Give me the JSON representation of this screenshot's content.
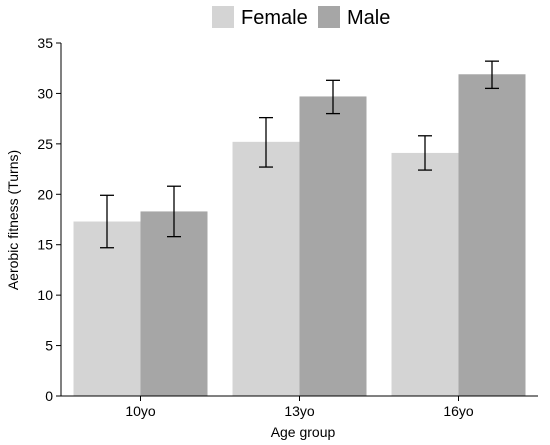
{
  "chart_data": {
    "type": "bar",
    "title": "",
    "xlabel": "Age group",
    "ylabel": "Aerobic fitness (Turns)",
    "categories": [
      "10yo",
      "13yo",
      "16yo"
    ],
    "ylim": [
      0,
      35
    ],
    "yticks": [
      0,
      5,
      10,
      15,
      20,
      25,
      30,
      35
    ],
    "grid": false,
    "legend_position": "top-center",
    "series": [
      {
        "name": "Female",
        "color": "#d4d4d4",
        "values": [
          17.3,
          25.2,
          24.1
        ],
        "error_low": [
          14.7,
          22.7,
          22.4
        ],
        "error_high": [
          19.9,
          27.6,
          25.8
        ]
      },
      {
        "name": "Male",
        "color": "#a6a6a6",
        "values": [
          18.3,
          29.7,
          31.9
        ],
        "error_low": [
          15.8,
          28.0,
          30.5
        ],
        "error_high": [
          20.8,
          31.3,
          33.2
        ]
      }
    ]
  }
}
